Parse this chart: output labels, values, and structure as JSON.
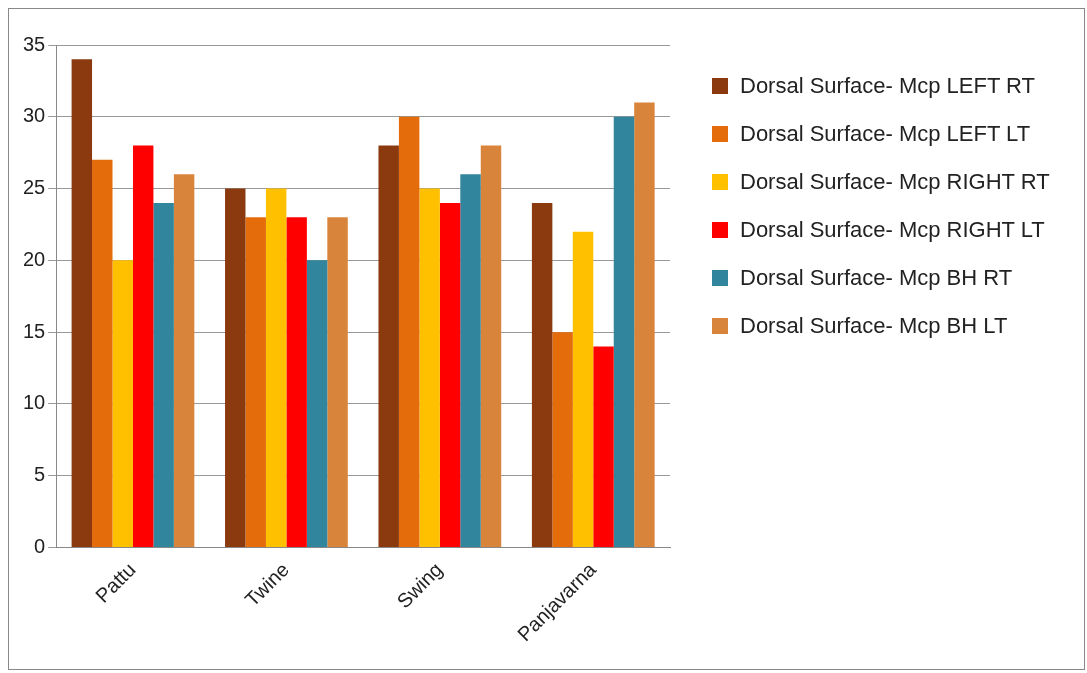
{
  "chart_data": {
    "type": "bar",
    "categories": [
      "Pattu",
      "Twine",
      "Swing",
      "Panjavarna"
    ],
    "series": [
      {
        "name": "Dorsal Surface- Mcp LEFT RT",
        "color": "#8b3a0f",
        "values": [
          34,
          25,
          28,
          24
        ]
      },
      {
        "name": "Dorsal Surface- Mcp LEFT LT",
        "color": "#e46c0a",
        "values": [
          27,
          23,
          30,
          15
        ]
      },
      {
        "name": "Dorsal Surface- Mcp RIGHT RT",
        "color": "#ffc000",
        "values": [
          20,
          25,
          25,
          22
        ]
      },
      {
        "name": "Dorsal Surface- Mcp RIGHT LT",
        "color": "#ff0000",
        "values": [
          28,
          23,
          24,
          14
        ]
      },
      {
        "name": "Dorsal Surface- Mcp BH RT",
        "color": "#31859c",
        "values": [
          24,
          20,
          26,
          30
        ]
      },
      {
        "name": "Dorsal Surface- Mcp BH LT",
        "color": "#d9843b",
        "values": [
          26,
          23,
          28,
          31
        ]
      }
    ],
    "ylim": [
      0,
      35
    ],
    "yticks": [
      0,
      5,
      10,
      15,
      20,
      25,
      30,
      35
    ],
    "grid": "y",
    "legend": "right"
  }
}
